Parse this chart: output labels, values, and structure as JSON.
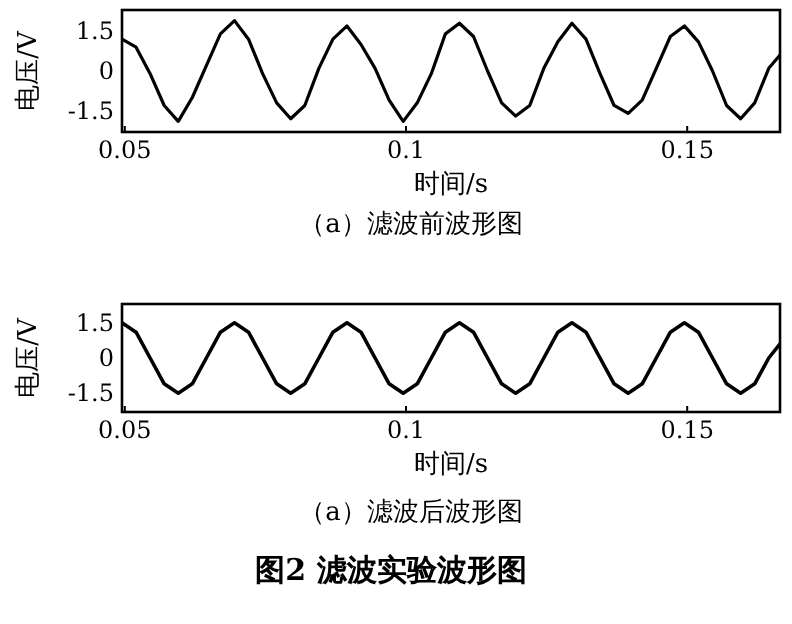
{
  "chart_data": [
    {
      "type": "line",
      "title": "（a）滤波前波形图",
      "xlabel": "时间/s",
      "ylabel": "电压/V",
      "xlim": [
        0.0495,
        0.1665
      ],
      "ylim": [
        -2.3,
        2.3
      ],
      "xticks": [
        0.05,
        0.1,
        0.15
      ],
      "yticks": [
        -1.5,
        0,
        1.5
      ],
      "x": [
        0.0495,
        0.052,
        0.0545,
        0.057,
        0.0595,
        0.062,
        0.0645,
        0.067,
        0.0695,
        0.072,
        0.0745,
        0.077,
        0.0795,
        0.082,
        0.0845,
        0.087,
        0.0895,
        0.092,
        0.0945,
        0.097,
        0.0995,
        0.102,
        0.1045,
        0.107,
        0.1095,
        0.112,
        0.1145,
        0.117,
        0.1195,
        0.122,
        0.1245,
        0.127,
        0.1295,
        0.132,
        0.1345,
        0.137,
        0.1395,
        0.142,
        0.1445,
        0.147,
        0.1495,
        0.152,
        0.1545,
        0.157,
        0.1595,
        0.162,
        0.1645,
        0.1665
      ],
      "series": [
        {
          "color": "#000000",
          "values": [
            1.2,
            0.9,
            -0.1,
            -1.3,
            -1.9,
            -1.0,
            0.2,
            1.4,
            1.9,
            1.2,
            -0.1,
            -1.2,
            -1.8,
            -1.3,
            0.1,
            1.2,
            1.7,
            1.0,
            0.1,
            -1.1,
            -1.9,
            -1.2,
            -0.1,
            1.4,
            1.8,
            1.3,
            0.0,
            -1.2,
            -1.7,
            -1.3,
            0.1,
            1.1,
            1.8,
            1.2,
            -0.1,
            -1.3,
            -1.6,
            -1.1,
            0.1,
            1.3,
            1.7,
            1.1,
            0.0,
            -1.3,
            -1.8,
            -1.2,
            0.1,
            0.6
          ]
        }
      ]
    },
    {
      "type": "line",
      "title": "（a）滤波后波形图",
      "xlabel": "时间/s",
      "ylabel": "电压/V",
      "xlim": [
        0.0495,
        0.1665
      ],
      "ylim": [
        -2.3,
        2.3
      ],
      "xticks": [
        0.05,
        0.1,
        0.15
      ],
      "yticks": [
        -1.5,
        0,
        1.5
      ],
      "annotations": [
        "图2  滤波实验波形图"
      ],
      "x": [
        0.0495,
        0.052,
        0.0545,
        0.057,
        0.0595,
        0.062,
        0.0645,
        0.067,
        0.0695,
        0.072,
        0.0745,
        0.077,
        0.0795,
        0.082,
        0.0845,
        0.087,
        0.0895,
        0.092,
        0.0945,
        0.097,
        0.0995,
        0.102,
        0.1045,
        0.107,
        0.1095,
        0.112,
        0.1145,
        0.117,
        0.1195,
        0.122,
        0.1245,
        0.127,
        0.1295,
        0.132,
        0.1345,
        0.137,
        0.1395,
        0.142,
        0.1445,
        0.147,
        0.1495,
        0.152,
        0.1545,
        0.157,
        0.1595,
        0.162,
        0.1645,
        0.1665
      ],
      "series": [
        {
          "color": "#000000",
          "values": [
            1.5,
            1.1,
            0,
            -1.1,
            -1.5,
            -1.1,
            0,
            1.1,
            1.5,
            1.1,
            0,
            -1.1,
            -1.5,
            -1.1,
            0,
            1.1,
            1.5,
            1.1,
            0,
            -1.1,
            -1.5,
            -1.1,
            0,
            1.1,
            1.5,
            1.1,
            0,
            -1.1,
            -1.5,
            -1.1,
            0,
            1.1,
            1.5,
            1.1,
            0,
            -1.1,
            -1.5,
            -1.1,
            0,
            1.1,
            1.5,
            1.1,
            0,
            -1.1,
            -1.5,
            -1.1,
            0,
            0.6
          ]
        }
      ]
    }
  ]
}
